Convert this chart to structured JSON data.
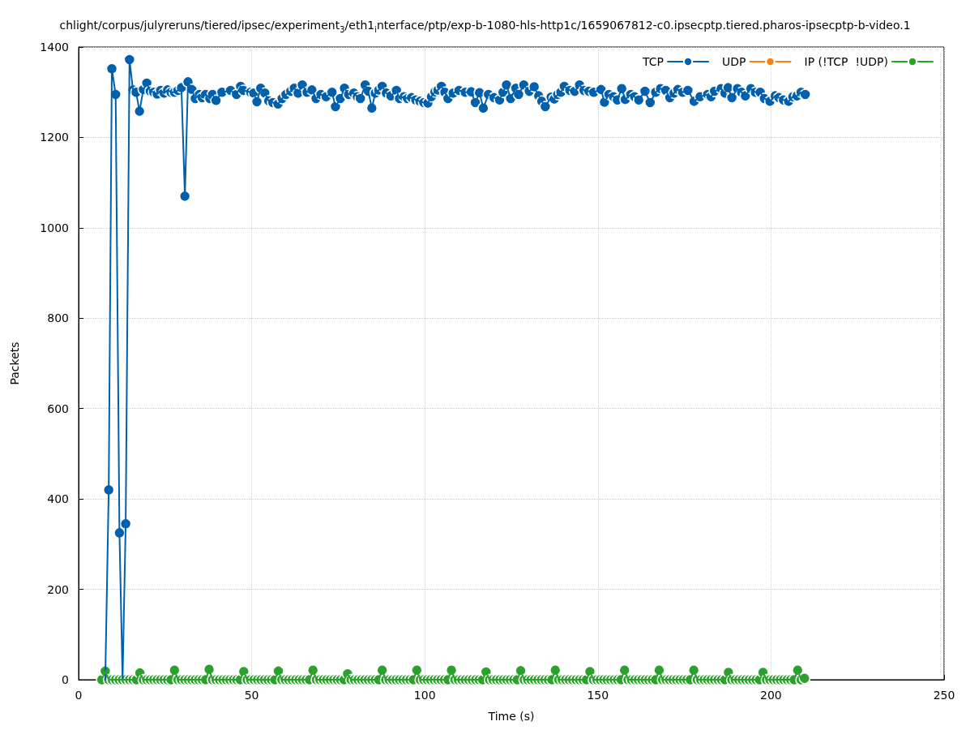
{
  "chart_data": {
    "type": "line",
    "title": "chlight/corpus/julyreruns/tiered/ipsec/experiment$_{3}$/eth1$_{i}$nterface/ptp/exp-b-1080-hls-http1c/1659067812-c0.ipsecptp.tiered.pharos-ipsecptp-b-video.1",
    "xlabel": "Time (s)",
    "ylabel": "Packets",
    "xlim": [
      0,
      250
    ],
    "xticks": [
      0,
      50,
      100,
      150,
      200,
      250
    ],
    "ylim": [
      0,
      1400
    ],
    "yticks": [
      0,
      200,
      400,
      600,
      800,
      1000,
      1200,
      1400
    ],
    "grid": true,
    "legend": "top right",
    "marker": "circle",
    "line_style": "solid",
    "series": [
      {
        "name": "TCP",
        "color": "#0060ad",
        "x": [
          7.7,
          8.7,
          9.6,
          10.7,
          11.8,
          12.7,
          13.6,
          14.7,
          15.7,
          16.6,
          17.6,
          18.7,
          19.7,
          20.7,
          21.7,
          22.7,
          23.7,
          24.7,
          25.7,
          26.7,
          27.7,
          28.7,
          29.7,
          30.7,
          31.6,
          32.7,
          33.7,
          34.9,
          35.7,
          36.7,
          37.9,
          38.7,
          39.7,
          41.4,
          43.9,
          45.6,
          46.8,
          47.6,
          49.7,
          50.6,
          51.5,
          52.6,
          53.8,
          54.9,
          56.1,
          57.6,
          58.8,
          59.9,
          61.3,
          62.3,
          63.4,
          64.6,
          66.0,
          67.4,
          68.6,
          70.0,
          71.5,
          73.2,
          74.2,
          75.6,
          76.8,
          78.0,
          79.5,
          80.5,
          81.4,
          82.8,
          83.7,
          84.7,
          85.7,
          86.7,
          87.7,
          88.9,
          90.2,
          91.8,
          92.7,
          94.0,
          95.0,
          96.2,
          97.4,
          98.6,
          99.7,
          100.9,
          101.9,
          102.9,
          103.8,
          104.8,
          105.8,
          106.7,
          108.2,
          109.9,
          111.7,
          113.4,
          114.6,
          115.8,
          116.9,
          118.4,
          120.0,
          121.6,
          122.6,
          123.6,
          124.8,
          126.3,
          127.1,
          128.6,
          130.2,
          131.6,
          132.9,
          133.8,
          134.8,
          136.5,
          137.4,
          138.4,
          139.3,
          140.3,
          141.9,
          143.3,
          144.7,
          146.0,
          147.4,
          148.8,
          150.9,
          151.9,
          153.2,
          154.5,
          155.6,
          156.9,
          157.9,
          159.5,
          160.6,
          161.8,
          163.6,
          165.1,
          166.7,
          168.1,
          169.6,
          170.8,
          172.0,
          173.1,
          174.5,
          176.0,
          177.8,
          179.5,
          181.7,
          182.7,
          183.7,
          185.6,
          186.7,
          187.6,
          188.7,
          190.3,
          191.5,
          192.6,
          194.2,
          195.5,
          196.9,
          198.1,
          199.7,
          201.2,
          202.3,
          203.6,
          205.1,
          206.3,
          207.5,
          208.7,
          209.9
        ],
        "values": [
          0,
          420,
          1352,
          1295,
          325,
          0,
          345,
          1372,
          1305,
          1300,
          1258,
          1306,
          1320,
          1302,
          1300,
          1296,
          1304,
          1298,
          1305,
          1300,
          1300,
          1304,
          1310,
          1070,
          1323,
          1306,
          1286,
          1295,
          1288,
          1295,
          1286,
          1295,
          1282,
          1300,
          1304,
          1295,
          1313,
          1304,
          1300,
          1298,
          1279,
          1309,
          1298,
          1281,
          1277,
          1274,
          1286,
          1295,
          1302,
          1309,
          1298,
          1316,
          1300,
          1305,
          1286,
          1295,
          1290,
          1300,
          1268,
          1286,
          1309,
          1295,
          1298,
          1290,
          1286,
          1316,
          1302,
          1265,
          1298,
          1305,
          1313,
          1298,
          1292,
          1304,
          1286,
          1290,
          1286,
          1288,
          1283,
          1280,
          1277,
          1276,
          1290,
          1301,
          1305,
          1313,
          1300,
          1286,
          1298,
          1304,
          1300,
          1301,
          1277,
          1299,
          1265,
          1295,
          1288,
          1283,
          1300,
          1316,
          1286,
          1309,
          1295,
          1316,
          1302,
          1312,
          1292,
          1280,
          1268,
          1289,
          1285,
          1295,
          1300,
          1313,
          1304,
          1302,
          1316,
          1304,
          1302,
          1300,
          1306,
          1278,
          1295,
          1290,
          1283,
          1308,
          1284,
          1295,
          1290,
          1283,
          1302,
          1277,
          1300,
          1308,
          1304,
          1288,
          1298,
          1306,
          1300,
          1304,
          1280,
          1290,
          1295,
          1290,
          1302,
          1308,
          1298,
          1310,
          1288,
          1308,
          1300,
          1292,
          1308,
          1300,
          1300,
          1286,
          1280,
          1292,
          1288,
          1283,
          1280,
          1290,
          1292,
          1300,
          1295
        ]
      },
      {
        "name": "UDP",
        "color": "#ff7f0e"
      },
      {
        "name": "IP (!TCP  !UDP)",
        "color": "#2ca02c",
        "x": [
          6.7,
          7.7,
          8.7,
          9.7,
          10.7,
          11.7,
          12.7,
          13.7,
          14.7,
          15.7,
          16.7,
          17.7,
          18.7,
          19.7,
          20.7,
          21.7,
          22.7,
          23.7,
          24.7,
          25.7,
          26.7,
          27.7,
          28.7,
          29.7,
          30.7,
          31.7,
          32.7,
          33.7,
          34.7,
          35.7,
          36.7,
          37.7,
          38.7,
          39.7,
          40.7,
          41.7,
          42.7,
          43.7,
          44.7,
          45.7,
          46.7,
          47.7,
          48.7,
          49.7,
          50.7,
          51.7,
          52.7,
          53.7,
          54.7,
          55.7,
          56.7,
          57.7,
          58.7,
          59.7,
          60.7,
          61.7,
          62.7,
          63.7,
          64.7,
          65.7,
          66.7,
          67.7,
          68.7,
          69.7,
          70.7,
          71.7,
          72.7,
          73.7,
          74.7,
          75.7,
          76.7,
          77.7,
          78.7,
          79.7,
          80.7,
          81.7,
          82.7,
          83.7,
          84.7,
          85.7,
          86.7,
          87.7,
          88.7,
          89.7,
          90.7,
          91.7,
          92.7,
          93.7,
          94.7,
          95.7,
          96.7,
          97.7,
          98.7,
          99.7,
          100.7,
          101.7,
          102.7,
          103.7,
          104.7,
          105.7,
          106.7,
          107.7,
          108.7,
          109.7,
          110.7,
          111.7,
          112.7,
          113.7,
          114.7,
          115.7,
          116.7,
          117.7,
          118.7,
          119.7,
          120.7,
          121.7,
          122.7,
          123.7,
          124.7,
          125.7,
          126.7,
          127.7,
          128.7,
          129.7,
          130.7,
          131.7,
          132.7,
          133.7,
          134.7,
          135.7,
          136.7,
          137.7,
          138.7,
          139.7,
          140.7,
          141.7,
          142.7,
          143.7,
          144.7,
          145.7,
          146.7,
          147.7,
          148.7,
          149.7,
          150.7,
          151.7,
          152.7,
          153.7,
          154.7,
          155.7,
          156.7,
          157.7,
          158.7,
          159.7,
          160.7,
          161.7,
          162.7,
          163.7,
          164.7,
          165.7,
          166.7,
          167.7,
          168.7,
          169.7,
          170.7,
          171.7,
          172.7,
          173.7,
          174.7,
          175.7,
          176.7,
          177.7,
          178.7,
          179.7,
          180.7,
          181.7,
          182.7,
          183.7,
          184.7,
          185.7,
          186.7,
          187.7,
          188.7,
          189.7,
          190.7,
          191.7,
          192.7,
          193.7,
          194.7,
          195.7,
          196.7,
          197.7,
          198.7,
          199.7,
          200.7,
          201.7,
          202.7,
          203.7,
          204.7,
          205.7,
          206.7,
          207.7,
          208.7,
          209.7
        ],
        "values": [
          0,
          19,
          0,
          0,
          0,
          0,
          0,
          0,
          0,
          0,
          0,
          15,
          0,
          0,
          0,
          0,
          0,
          0,
          0,
          0,
          0,
          21,
          0,
          0,
          0,
          0,
          0,
          0,
          0,
          0,
          0,
          23,
          0,
          0,
          0,
          0,
          0,
          0,
          0,
          0,
          0,
          18,
          0,
          0,
          0,
          0,
          0,
          0,
          0,
          0,
          0,
          19,
          0,
          0,
          0,
          0,
          0,
          0,
          0,
          0,
          0,
          21,
          0,
          0,
          0,
          0,
          0,
          0,
          0,
          0,
          0,
          13,
          0,
          0,
          0,
          0,
          0,
          0,
          0,
          0,
          0,
          21,
          0,
          0,
          0,
          0,
          0,
          0,
          0,
          0,
          0,
          21,
          0,
          0,
          0,
          0,
          0,
          0,
          0,
          0,
          0,
          21,
          0,
          0,
          0,
          0,
          0,
          0,
          0,
          0,
          0,
          17,
          0,
          0,
          0,
          0,
          0,
          0,
          0,
          0,
          0,
          20,
          0,
          0,
          0,
          0,
          0,
          0,
          0,
          0,
          0,
          21,
          0,
          0,
          0,
          0,
          0,
          0,
          0,
          0,
          0,
          18,
          0,
          0,
          0,
          0,
          0,
          0,
          0,
          0,
          0,
          21,
          0,
          0,
          0,
          0,
          0,
          0,
          0,
          0,
          0,
          21,
          0,
          0,
          0,
          0,
          0,
          0,
          0,
          0,
          0,
          21,
          0,
          0,
          0,
          0,
          0,
          0,
          0,
          0,
          0,
          16,
          0,
          0,
          0,
          0,
          0,
          0,
          0,
          0,
          0,
          16,
          0,
          0,
          0,
          0,
          0,
          0,
          0,
          0,
          0,
          21,
          0,
          3
        ]
      }
    ]
  }
}
